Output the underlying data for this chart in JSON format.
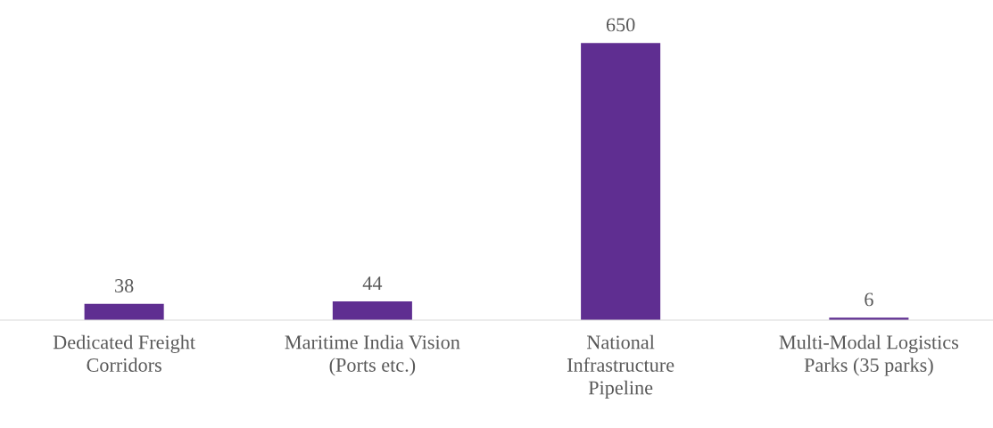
{
  "chart_data": {
    "type": "bar",
    "categories": [
      "Dedicated Freight\nCorridors",
      "Maritime India Vision\n(Ports etc.)",
      "National\nInfrastructure\nPipeline",
      "Multi-Modal Logistics\nParks (35 parks)"
    ],
    "values": [
      38,
      44,
      650,
      6
    ],
    "color": "#5f2e91",
    "data_labels": true,
    "grid": false,
    "legend": false
  }
}
